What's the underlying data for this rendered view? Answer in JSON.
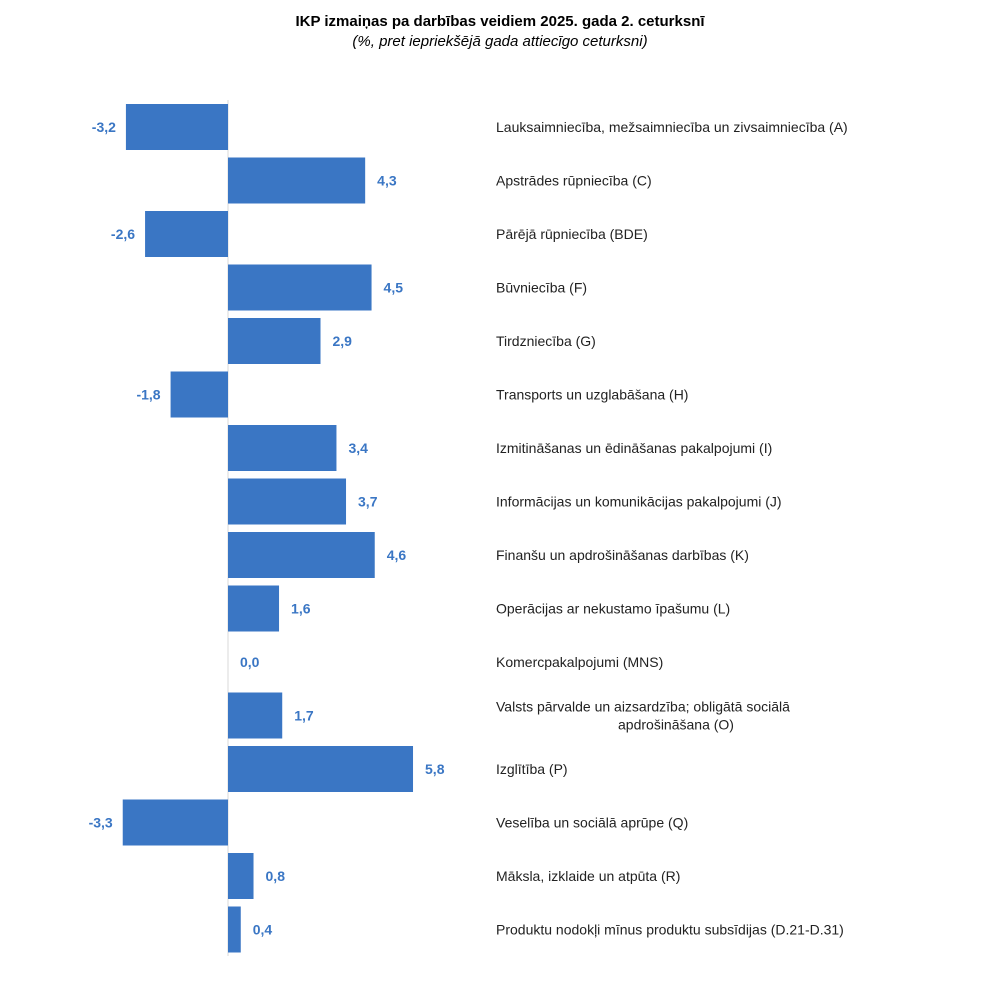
{
  "chart_data": {
    "type": "bar",
    "orientation": "horizontal",
    "title": "IKP izmaiņas pa darbības veidiem 2025. gada 2. ceturksnī",
    "subtitle": "(%, pret iepriekšējā gada attiecīgo ceturksni)",
    "categories": [
      "Lauksaimniecība, mežsaimniecība un zivsaimniecība (A)",
      "Apstrādes rūpniecība (C)",
      "Pārējā rūpniecība (BDE)",
      "Būvniecība (F)",
      "Tirdzniecība (G)",
      "Transports un uzglabāšana (H)",
      "Izmitināšanas un ēdināšanas pakalpojumi (I)",
      "Informācijas un komunikācijas pakalpojumi (J)",
      "Finanšu un apdrošināšanas darbības (K)",
      "Operācijas ar nekustamo īpašumu (L)",
      "Komercpakalpojumi (MNS)",
      "Valsts pārvalde un aizsardzība; obligātā sociālā apdrošināšana (O)",
      "Izglītība (P)",
      "Veselība un sociālā aprūpe (Q)",
      "Māksla, izklaide un atpūta (R)",
      "Produktu nodokļi mīnus produktu subsīdijas (D.21-D.31)"
    ],
    "category_lines": [
      [
        "Lauksaimniecība, mežsaimniecība un zivsaimniecība (A)"
      ],
      [
        "Apstrādes rūpniecība (C)"
      ],
      [
        "Pārējā rūpniecība (BDE)"
      ],
      [
        "Būvniecība (F)"
      ],
      [
        "Tirdzniecība (G)"
      ],
      [
        "Transports un uzglabāšana (H)"
      ],
      [
        "Izmitināšanas un ēdināšanas pakalpojumi (I)"
      ],
      [
        "Informācijas un komunikācijas pakalpojumi (J)"
      ],
      [
        "Finanšu un apdrošināšanas darbības (K)"
      ],
      [
        "Operācijas ar nekustamo īpašumu (L)"
      ],
      [
        "Komercpakalpojumi (MNS)"
      ],
      [
        "Valsts pārvalde un aizsardzība; obligātā sociālā",
        "apdrošināšana (O)"
      ],
      [
        "Izglītība (P)"
      ],
      [
        "Veselība un sociālā aprūpe (Q)"
      ],
      [
        "Māksla, izklaide un atpūta (R)"
      ],
      [
        "Produktu nodokļi mīnus produktu subsīdijas (D.21-D.31)"
      ]
    ],
    "values": [
      -3.2,
      4.3,
      -2.6,
      4.5,
      2.9,
      -1.8,
      3.4,
      3.7,
      4.6,
      1.6,
      0.0,
      1.7,
      5.8,
      -3.3,
      0.8,
      0.4
    ],
    "value_labels": [
      "-3,2",
      "4,3",
      "-2,6",
      "4,5",
      "2,9",
      "-1,8",
      "3,4",
      "3,7",
      "4,6",
      "1,6",
      "0,0",
      "1,7",
      "5,8",
      "-3,3",
      "0,8",
      "0,4"
    ],
    "xlim": [
      -3.3,
      5.8
    ],
    "grid": false,
    "legend": "none",
    "bar_color": "#3a76c4",
    "label_color": "#3a76c4",
    "axis_color": "#d9d9d9"
  }
}
